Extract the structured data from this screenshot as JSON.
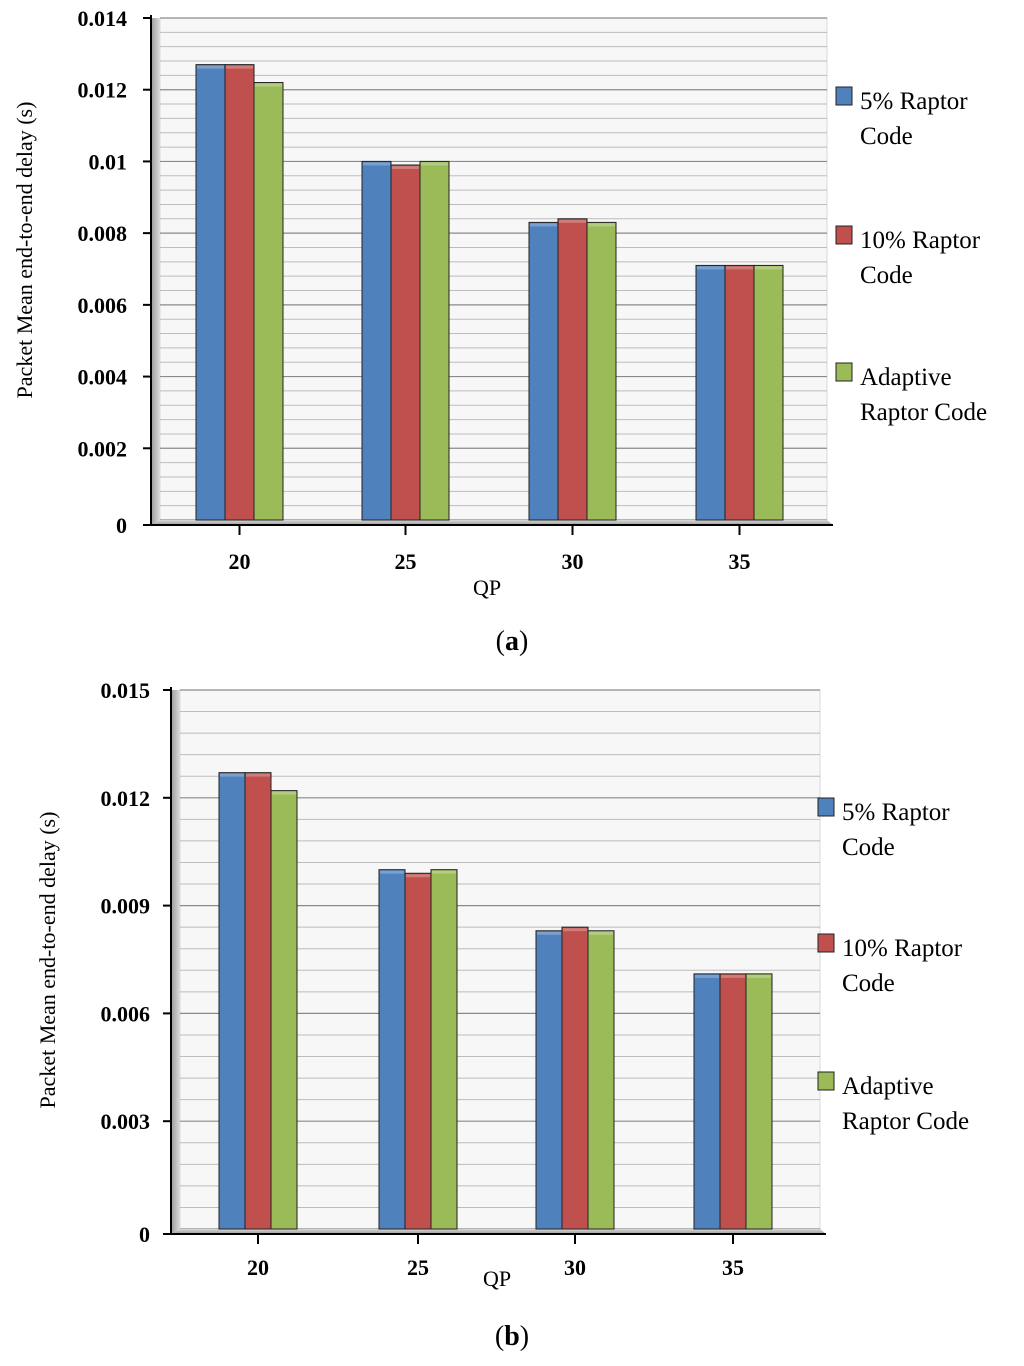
{
  "chart_data": [
    {
      "id": "a",
      "type": "bar",
      "caption": "a",
      "categories": [
        "20",
        "25",
        "30",
        "35"
      ],
      "xlabel": "QP",
      "ylabel": "Packet Mean end-to-end delay (s)",
      "ylim": [
        0,
        0.014
      ],
      "yticks": [
        "0",
        "0.002",
        "0.004",
        "0.006",
        "0.008",
        "0.01",
        "0.012",
        "0.014"
      ],
      "ytick_values": [
        0,
        0.002,
        0.004,
        0.006,
        0.008,
        0.01,
        0.012,
        0.014
      ],
      "grid": true,
      "legend_position": "right",
      "series": [
        {
          "name": "5% Raptor Code",
          "name_lines": [
            "5% Raptor",
            "Code"
          ],
          "color": "#4F81BD",
          "values": [
            0.0127,
            0.01,
            0.0083,
            0.0071
          ]
        },
        {
          "name": "10% Raptor Code",
          "name_lines": [
            "10% Raptor",
            "Code"
          ],
          "color": "#C0504D",
          "values": [
            0.0127,
            0.0099,
            0.0084,
            0.0071
          ]
        },
        {
          "name": "Adaptive Raptor Code",
          "name_lines": [
            "Adaptive",
            "Raptor Code"
          ],
          "color": "#9BBB59",
          "values": [
            0.0122,
            0.01,
            0.0083,
            0.0071
          ]
        }
      ]
    },
    {
      "id": "b",
      "type": "bar",
      "caption": "b",
      "categories": [
        "20",
        "25",
        "30",
        "35"
      ],
      "xlabel": "QP",
      "ylabel": "Packet Mean end-to-end delay (s)",
      "ylim": [
        0,
        0.015
      ],
      "yticks": [
        "0",
        "0.003",
        "0.006",
        "0.009",
        "0.012",
        "0.015"
      ],
      "ytick_values": [
        0,
        0.003,
        0.006,
        0.009,
        0.012,
        0.015
      ],
      "grid": true,
      "legend_position": "right",
      "series": [
        {
          "name": "5%  Raptor Code",
          "name_lines": [
            "5%  Raptor",
            "Code"
          ],
          "color": "#4F81BD",
          "values": [
            0.0127,
            0.01,
            0.0083,
            0.0071
          ]
        },
        {
          "name": "10%  Raptor Code",
          "name_lines": [
            "10%  Raptor",
            "Code"
          ],
          "color": "#C0504D",
          "values": [
            0.0127,
            0.0099,
            0.0084,
            0.0071
          ]
        },
        {
          "name": "Adaptive Raptor Code",
          "name_lines": [
            "Adaptive",
            "Raptor Code"
          ],
          "color": "#9BBB59",
          "values": [
            0.0122,
            0.01,
            0.0083,
            0.0071
          ]
        }
      ]
    }
  ]
}
